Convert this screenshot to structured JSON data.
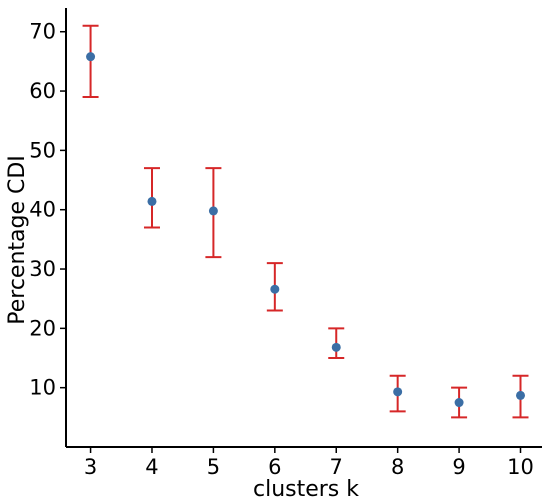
{
  "chart_data": {
    "type": "scatter",
    "title": "",
    "xlabel": "clusters k",
    "ylabel": "Percentage CDI",
    "x": [
      3,
      4,
      5,
      6,
      7,
      8,
      9,
      10
    ],
    "y": [
      65.8,
      41.4,
      39.8,
      26.6,
      16.8,
      9.3,
      7.5,
      8.7
    ],
    "error_lower": [
      59,
      37,
      32,
      23,
      15,
      6,
      5,
      5
    ],
    "error_upper": [
      71,
      47,
      47,
      31,
      20,
      12,
      10,
      12
    ],
    "xlim": [
      2.6,
      10.35
    ],
    "ylim": [
      0,
      74
    ],
    "xticks": [
      3,
      4,
      5,
      6,
      7,
      8,
      9,
      10
    ],
    "yticks": [
      10,
      20,
      30,
      40,
      50,
      60,
      70
    ],
    "grid": false,
    "legend": "none",
    "marker_color": "#3b6ea5",
    "errorbar_color": "#d62728"
  }
}
